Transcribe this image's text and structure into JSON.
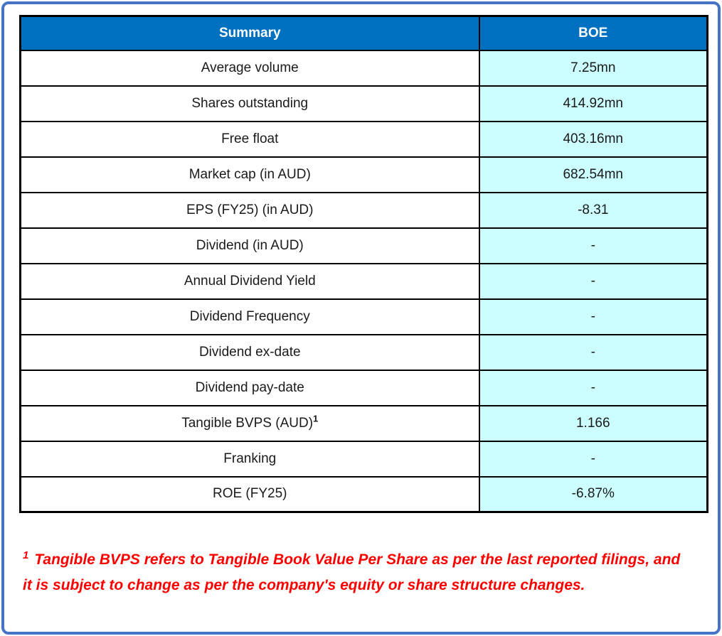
{
  "table": {
    "headers": {
      "summary": "Summary",
      "boe": "BOE"
    },
    "rows": [
      {
        "label": "Average volume",
        "value": "7.25mn"
      },
      {
        "label": "Shares outstanding",
        "value": "414.92mn"
      },
      {
        "label": "Free float",
        "value": "403.16mn"
      },
      {
        "label": "Market cap (in AUD)",
        "value": "682.54mn"
      },
      {
        "label": "EPS (FY25) (in AUD)",
        "value": "-8.31"
      },
      {
        "label": "Dividend (in AUD)",
        "value": "-"
      },
      {
        "label": "Annual Dividend Yield",
        "value": "-"
      },
      {
        "label": "Dividend Frequency",
        "value": "-"
      },
      {
        "label": "Dividend ex-date",
        "value": "-"
      },
      {
        "label": "Dividend pay-date",
        "value": "-"
      },
      {
        "label": "Tangible BVPS (AUD)",
        "sup": "1",
        "value": "1.166"
      },
      {
        "label": "Franking",
        "value": "-"
      },
      {
        "label": "ROE (FY25)",
        "value": "-6.87%"
      }
    ]
  },
  "footnote": {
    "sup": "1",
    "text": "Tangible BVPS refers to Tangible Book Value Per Share as per the last reported filings, and it is subject to change as per the company's equity or share structure changes."
  },
  "colors": {
    "outer_border": "#4673C6",
    "header_bg": "#0070C0",
    "header_text": "#FFFFFF",
    "value_bg": "#CCFEFF",
    "table_border": "#000000",
    "footnote_text": "#FF0000"
  }
}
